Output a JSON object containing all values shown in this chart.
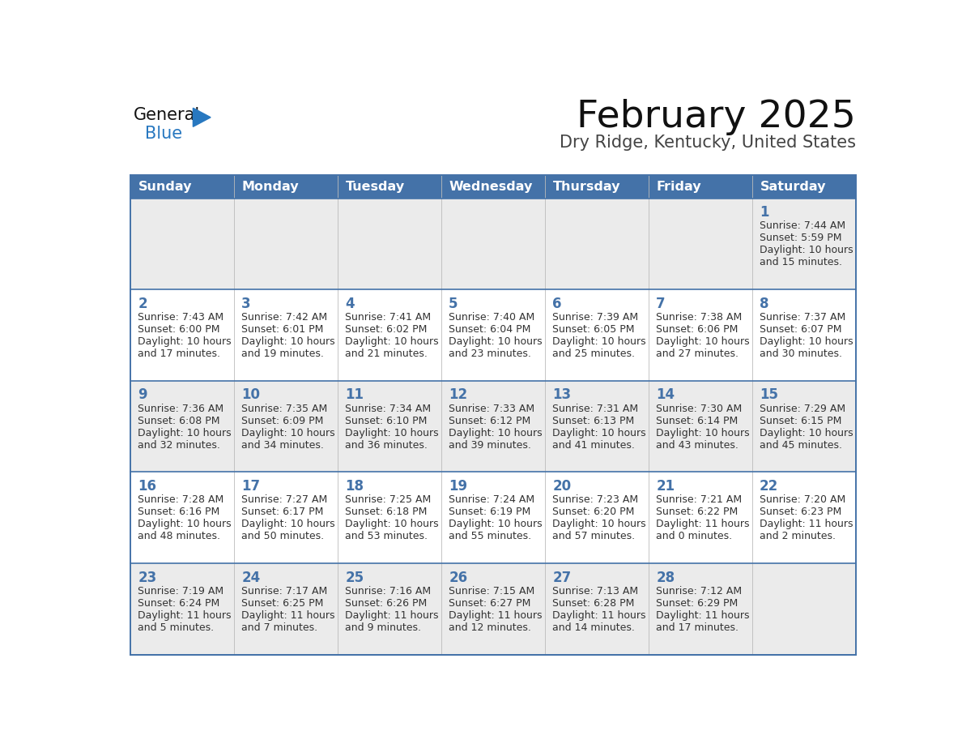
{
  "title": "February 2025",
  "subtitle": "Dry Ridge, Kentucky, United States",
  "header_bg": "#4472a8",
  "header_text": "#ffffff",
  "day_names": [
    "Sunday",
    "Monday",
    "Tuesday",
    "Wednesday",
    "Thursday",
    "Friday",
    "Saturday"
  ],
  "row_odd_bg": "#ebebeb",
  "row_even_bg": "#ffffff",
  "border_color": "#4472a8",
  "day_num_color": "#4472a8",
  "info_color": "#333333",
  "calendar": [
    [
      null,
      null,
      null,
      null,
      null,
      null,
      {
        "day": 1,
        "sunrise": "7:44 AM",
        "sunset": "5:59 PM",
        "daylight": "10 hours",
        "daylight2": "and 15 minutes."
      }
    ],
    [
      {
        "day": 2,
        "sunrise": "7:43 AM",
        "sunset": "6:00 PM",
        "daylight": "10 hours",
        "daylight2": "and 17 minutes."
      },
      {
        "day": 3,
        "sunrise": "7:42 AM",
        "sunset": "6:01 PM",
        "daylight": "10 hours",
        "daylight2": "and 19 minutes."
      },
      {
        "day": 4,
        "sunrise": "7:41 AM",
        "sunset": "6:02 PM",
        "daylight": "10 hours",
        "daylight2": "and 21 minutes."
      },
      {
        "day": 5,
        "sunrise": "7:40 AM",
        "sunset": "6:04 PM",
        "daylight": "10 hours",
        "daylight2": "and 23 minutes."
      },
      {
        "day": 6,
        "sunrise": "7:39 AM",
        "sunset": "6:05 PM",
        "daylight": "10 hours",
        "daylight2": "and 25 minutes."
      },
      {
        "day": 7,
        "sunrise": "7:38 AM",
        "sunset": "6:06 PM",
        "daylight": "10 hours",
        "daylight2": "and 27 minutes."
      },
      {
        "day": 8,
        "sunrise": "7:37 AM",
        "sunset": "6:07 PM",
        "daylight": "10 hours",
        "daylight2": "and 30 minutes."
      }
    ],
    [
      {
        "day": 9,
        "sunrise": "7:36 AM",
        "sunset": "6:08 PM",
        "daylight": "10 hours",
        "daylight2": "and 32 minutes."
      },
      {
        "day": 10,
        "sunrise": "7:35 AM",
        "sunset": "6:09 PM",
        "daylight": "10 hours",
        "daylight2": "and 34 minutes."
      },
      {
        "day": 11,
        "sunrise": "7:34 AM",
        "sunset": "6:10 PM",
        "daylight": "10 hours",
        "daylight2": "and 36 minutes."
      },
      {
        "day": 12,
        "sunrise": "7:33 AM",
        "sunset": "6:12 PM",
        "daylight": "10 hours",
        "daylight2": "and 39 minutes."
      },
      {
        "day": 13,
        "sunrise": "7:31 AM",
        "sunset": "6:13 PM",
        "daylight": "10 hours",
        "daylight2": "and 41 minutes."
      },
      {
        "day": 14,
        "sunrise": "7:30 AM",
        "sunset": "6:14 PM",
        "daylight": "10 hours",
        "daylight2": "and 43 minutes."
      },
      {
        "day": 15,
        "sunrise": "7:29 AM",
        "sunset": "6:15 PM",
        "daylight": "10 hours",
        "daylight2": "and 45 minutes."
      }
    ],
    [
      {
        "day": 16,
        "sunrise": "7:28 AM",
        "sunset": "6:16 PM",
        "daylight": "10 hours",
        "daylight2": "and 48 minutes."
      },
      {
        "day": 17,
        "sunrise": "7:27 AM",
        "sunset": "6:17 PM",
        "daylight": "10 hours",
        "daylight2": "and 50 minutes."
      },
      {
        "day": 18,
        "sunrise": "7:25 AM",
        "sunset": "6:18 PM",
        "daylight": "10 hours",
        "daylight2": "and 53 minutes."
      },
      {
        "day": 19,
        "sunrise": "7:24 AM",
        "sunset": "6:19 PM",
        "daylight": "10 hours",
        "daylight2": "and 55 minutes."
      },
      {
        "day": 20,
        "sunrise": "7:23 AM",
        "sunset": "6:20 PM",
        "daylight": "10 hours",
        "daylight2": "and 57 minutes."
      },
      {
        "day": 21,
        "sunrise": "7:21 AM",
        "sunset": "6:22 PM",
        "daylight": "11 hours",
        "daylight2": "and 0 minutes."
      },
      {
        "day": 22,
        "sunrise": "7:20 AM",
        "sunset": "6:23 PM",
        "daylight": "11 hours",
        "daylight2": "and 2 minutes."
      }
    ],
    [
      {
        "day": 23,
        "sunrise": "7:19 AM",
        "sunset": "6:24 PM",
        "daylight": "11 hours",
        "daylight2": "and 5 minutes."
      },
      {
        "day": 24,
        "sunrise": "7:17 AM",
        "sunset": "6:25 PM",
        "daylight": "11 hours",
        "daylight2": "and 7 minutes."
      },
      {
        "day": 25,
        "sunrise": "7:16 AM",
        "sunset": "6:26 PM",
        "daylight": "11 hours",
        "daylight2": "and 9 minutes."
      },
      {
        "day": 26,
        "sunrise": "7:15 AM",
        "sunset": "6:27 PM",
        "daylight": "11 hours",
        "daylight2": "and 12 minutes."
      },
      {
        "day": 27,
        "sunrise": "7:13 AM",
        "sunset": "6:28 PM",
        "daylight": "11 hours",
        "daylight2": "and 14 minutes."
      },
      {
        "day": 28,
        "sunrise": "7:12 AM",
        "sunset": "6:29 PM",
        "daylight": "11 hours",
        "daylight2": "and 17 minutes."
      },
      null
    ]
  ],
  "logo_general_color": "#111111",
  "logo_blue_color": "#2878c0",
  "logo_triangle_color": "#2878c0"
}
